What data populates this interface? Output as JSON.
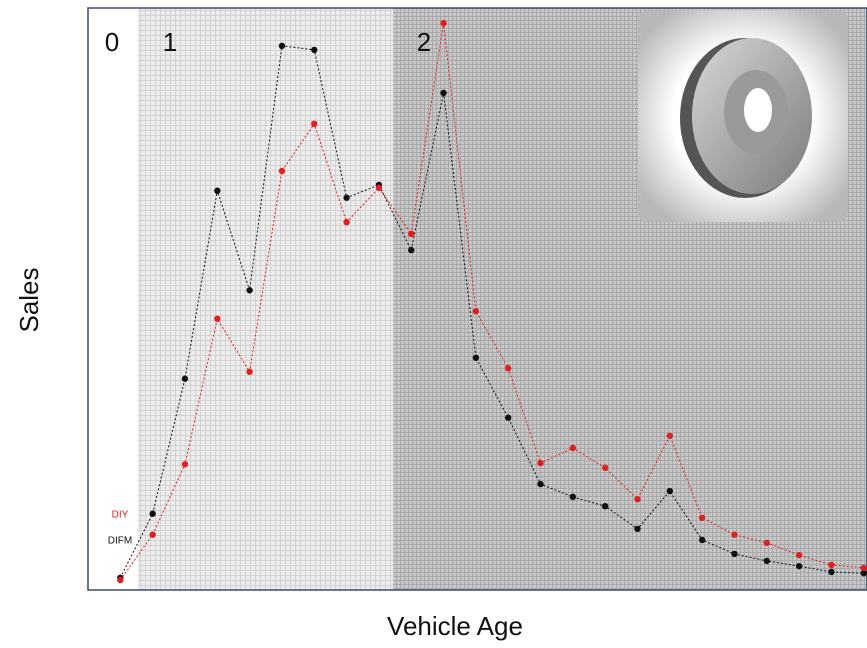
{
  "chart_data": {
    "type": "line",
    "x_label": "Vehicle Age",
    "y_label": "Sales",
    "annotations": [
      "0",
      "1",
      "2"
    ],
    "x": [
      0,
      1,
      2,
      3,
      4,
      5,
      6,
      7,
      8,
      9,
      10,
      11,
      12,
      13,
      14,
      15,
      16,
      17,
      18,
      19,
      20,
      21,
      22,
      23
    ],
    "xlim": [
      -1,
      23.1
    ],
    "ylim": [
      0,
      100
    ],
    "series": [
      {
        "name": "DIFM",
        "color": "#111111",
        "values": [
          2.1,
          13.1,
          36.3,
          68.6,
          51.5,
          93.5,
          92.8,
          67.4,
          69.6,
          58.4,
          85.4,
          39.9,
          29.6,
          18.2,
          16.0,
          14.4,
          10.5,
          17.0,
          8.6,
          6.2,
          5.0,
          4.1,
          3.1,
          2.9
        ]
      },
      {
        "name": "DIY",
        "color": "#e02020",
        "values": [
          1.7,
          9.5,
          21.6,
          46.6,
          37.5,
          72.0,
          80.1,
          63.2,
          69.1,
          61.2,
          97.4,
          47.9,
          38.1,
          21.8,
          24.4,
          21.0,
          15.6,
          26.5,
          12.4,
          9.5,
          8.1,
          6.0,
          4.3,
          3.8
        ]
      }
    ]
  }
}
